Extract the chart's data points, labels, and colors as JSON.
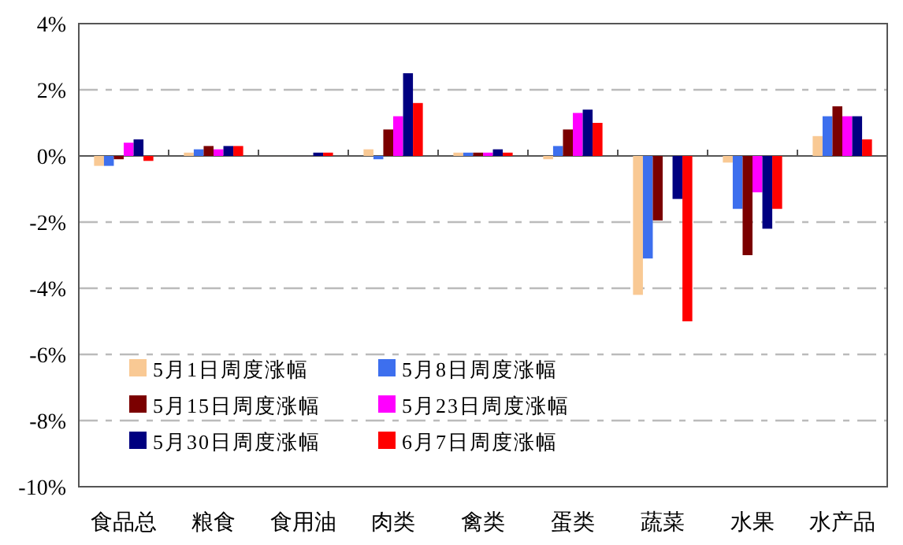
{
  "chart_data": {
    "type": "bar",
    "categories": [
      "食品总",
      "粮食",
      "食用油",
      "肉类",
      "禽类",
      "蛋类",
      "蔬菜",
      "水果",
      "水产品"
    ],
    "series": [
      {
        "name": "5月1日周度涨幅",
        "color": "#f9c994",
        "values": [
          -0.3,
          0.1,
          0,
          0.2,
          0.1,
          -0.1,
          -4.2,
          -0.2,
          0.6
        ]
      },
      {
        "name": "5月8日周度涨幅",
        "color": "#3d6fee",
        "values": [
          -0.3,
          0.2,
          0,
          -0.1,
          0.1,
          0.3,
          -3.1,
          -1.6,
          1.2
        ]
      },
      {
        "name": "5月15日周度涨幅",
        "color": "#7b0000",
        "values": [
          -0.1,
          0.3,
          0,
          0.8,
          0.1,
          0.8,
          -1.95,
          -3.0,
          1.5
        ]
      },
      {
        "name": "5月23日周度涨幅",
        "color": "#ff00ff",
        "values": [
          0.4,
          0.2,
          0,
          1.2,
          0.1,
          1.3,
          0,
          -1.1,
          1.2
        ]
      },
      {
        "name": "5月30日周度涨幅",
        "color": "#000080",
        "values": [
          0.5,
          0.3,
          0.1,
          2.5,
          0.2,
          1.4,
          -1.3,
          -2.2,
          1.2
        ]
      },
      {
        "name": "6月7日周度涨幅",
        "color": "#ff0000",
        "values": [
          -0.15,
          0.3,
          0.1,
          1.6,
          0.1,
          1.0,
          -5.0,
          -1.6,
          0.5
        ]
      }
    ],
    "ylim": [
      -10,
      4
    ],
    "yticks": [
      {
        "value": -10,
        "label": "-10%"
      },
      {
        "value": -8,
        "label": "-8%"
      },
      {
        "value": -6,
        "label": "-6%"
      },
      {
        "value": -4,
        "label": "-4%"
      },
      {
        "value": -2,
        "label": "-2%"
      },
      {
        "value": 0,
        "label": "0%"
      },
      {
        "value": 2,
        "label": "2%"
      },
      {
        "value": 4,
        "label": "4%"
      }
    ],
    "grid": "y",
    "legend": "bottom left"
  }
}
